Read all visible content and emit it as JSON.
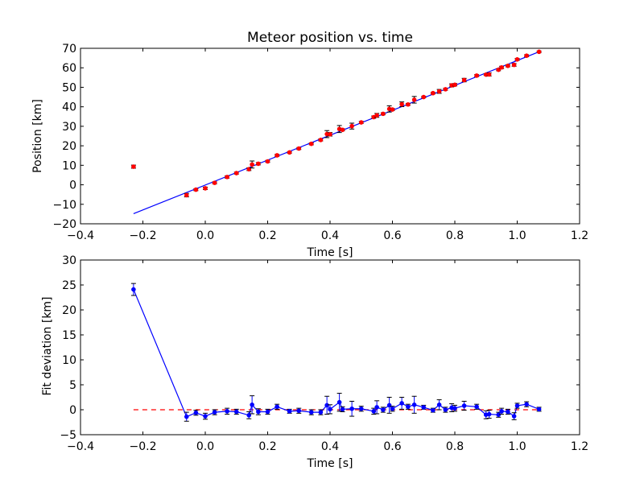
{
  "chart_data": [
    {
      "type": "scatter",
      "title": "Meteor position vs. time",
      "xlabel": "Time [s]",
      "ylabel": "Position [km]",
      "xlim": [
        -0.4,
        1.2
      ],
      "ylim": [
        -20,
        70
      ],
      "xticks": [
        "−0.4",
        "−0.2",
        "0.0",
        "0.2",
        "0.4",
        "0.6",
        "0.8",
        "1.0",
        "1.2"
      ],
      "yticks": [
        "−20",
        "−10",
        "0",
        "10",
        "20",
        "30",
        "40",
        "50",
        "60",
        "70"
      ],
      "grid": false,
      "colors": {
        "points": "#ff0000",
        "fit": "#0000ff"
      },
      "series": [
        {
          "style": "red points with error bars",
          "x": [
            -0.23,
            -0.06,
            -0.03,
            0.0,
            0.03,
            0.07,
            0.1,
            0.14,
            0.15,
            0.17,
            0.2,
            0.23,
            0.27,
            0.3,
            0.34,
            0.37,
            0.39,
            0.4,
            0.43,
            0.44,
            0.47,
            0.5,
            0.54,
            0.55,
            0.57,
            0.59,
            0.6,
            0.63,
            0.65,
            0.67,
            0.7,
            0.73,
            0.75,
            0.77,
            0.79,
            0.8,
            0.83,
            0.87,
            0.9,
            0.91,
            0.94,
            0.95,
            0.97,
            0.99,
            1.0,
            1.03,
            1.07
          ],
          "y": [
            9.3,
            -5.3,
            -2.5,
            -1.8,
            1.0,
            4.0,
            6.0,
            8.0,
            10.4,
            10.8,
            12.0,
            15.1,
            16.6,
            18.6,
            21.0,
            23.0,
            26.0,
            25.9,
            28.6,
            28.2,
            30.1,
            32.0,
            34.7,
            35.6,
            36.4,
            38.9,
            38.6,
            41.3,
            41.2,
            43.6,
            45.0,
            47.0,
            47.9,
            49.0,
            51.0,
            51.3,
            53.7,
            56.0,
            56.5,
            56.6,
            59.0,
            60.2,
            61.0,
            61.5,
            64.3,
            66.2,
            68.2
          ],
          "err": [
            0.8,
            0.9,
            0.5,
            0.6,
            0.5,
            0.6,
            0.5,
            0.7,
            1.8,
            0.6,
            0.5,
            0.5,
            0.4,
            0.5,
            0.5,
            0.5,
            1.8,
            0.9,
            1.8,
            0.5,
            1.5,
            0.5,
            0.6,
            1.0,
            0.5,
            1.6,
            0.5,
            1.2,
            0.5,
            1.7,
            0.4,
            0.4,
            1.0,
            0.5,
            0.8,
            0.6,
            0.9,
            0.5,
            0.4,
            0.8,
            0.5,
            0.6,
            0.5,
            0.7,
            0.5,
            0.5,
            0.4
          ]
        },
        {
          "style": "blue fitted line",
          "x": [
            -0.23,
            1.07
          ],
          "y": [
            -14.8,
            68.2
          ]
        }
      ]
    },
    {
      "type": "line",
      "xlabel": "Time [s]",
      "ylabel": "Fit deviation [km]",
      "xlim": [
        -0.4,
        1.2
      ],
      "ylim": [
        -5,
        30
      ],
      "xticks": [
        "−0.4",
        "−0.2",
        "0.0",
        "0.2",
        "0.4",
        "0.6",
        "0.8",
        "1.0",
        "1.2"
      ],
      "yticks": [
        "−5",
        "0",
        "5",
        "10",
        "15",
        "20",
        "25",
        "30"
      ],
      "grid": false,
      "colors": {
        "line": "#0000ff",
        "zero": "#ff0000"
      },
      "series": [
        {
          "style": "blue line with markers and error bars",
          "x": [
            -0.23,
            -0.06,
            -0.03,
            0.0,
            0.03,
            0.07,
            0.1,
            0.14,
            0.15,
            0.17,
            0.2,
            0.23,
            0.27,
            0.3,
            0.34,
            0.37,
            0.39,
            0.4,
            0.43,
            0.44,
            0.47,
            0.5,
            0.54,
            0.55,
            0.57,
            0.59,
            0.6,
            0.63,
            0.65,
            0.67,
            0.7,
            0.73,
            0.75,
            0.77,
            0.79,
            0.8,
            0.83,
            0.87,
            0.9,
            0.91,
            0.94,
            0.95,
            0.97,
            0.99,
            1.0,
            1.03,
            1.07
          ],
          "y": [
            24.1,
            -1.4,
            -0.6,
            -1.3,
            -0.5,
            -0.3,
            -0.4,
            -1.1,
            1.0,
            -0.4,
            -0.4,
            0.6,
            -0.3,
            -0.2,
            -0.5,
            -0.5,
            0.9,
            0.1,
            1.5,
            0.1,
            0.2,
            0.2,
            -0.3,
            0.5,
            0.0,
            0.9,
            0.2,
            1.3,
            0.6,
            1.0,
            0.5,
            -0.1,
            1.0,
            0.0,
            0.4,
            0.3,
            0.8,
            0.6,
            -1.0,
            -0.9,
            -1.0,
            -0.3,
            -0.4,
            -1.3,
            0.8,
            1.1,
            0.1
          ],
          "err": [
            1.2,
            0.9,
            0.5,
            0.6,
            0.5,
            0.6,
            0.5,
            0.7,
            1.8,
            0.6,
            0.5,
            0.5,
            0.4,
            0.5,
            0.5,
            0.5,
            1.8,
            0.9,
            1.8,
            0.5,
            1.5,
            0.5,
            0.6,
            1.3,
            0.5,
            1.6,
            0.5,
            1.2,
            0.5,
            1.7,
            0.4,
            0.4,
            1.0,
            0.5,
            0.8,
            0.6,
            0.9,
            0.5,
            0.8,
            0.8,
            0.5,
            0.6,
            0.5,
            0.7,
            0.5,
            0.5,
            0.4
          ]
        },
        {
          "style": "red dashed zero line",
          "x": [
            -0.23,
            1.07
          ],
          "y": [
            0,
            0
          ]
        }
      ]
    }
  ]
}
